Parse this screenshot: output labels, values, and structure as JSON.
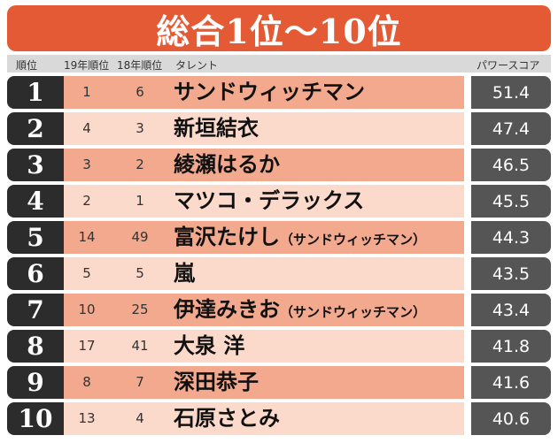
{
  "title": "総合1位～10位",
  "header": {
    "rank": "順位",
    "y19": "19年順位",
    "y18": "18年順位",
    "talent": "タレント",
    "score": "パワースコア"
  },
  "rows": [
    {
      "rank": "1",
      "y19": "1",
      "y18": "6",
      "talent": "サンドウィッチマン",
      "sub": "",
      "score": "51.4"
    },
    {
      "rank": "2",
      "y19": "4",
      "y18": "3",
      "talent": "新垣結衣",
      "sub": "",
      "score": "47.4"
    },
    {
      "rank": "3",
      "y19": "3",
      "y18": "2",
      "talent": "綾瀬はるか",
      "sub": "",
      "score": "46.5"
    },
    {
      "rank": "4",
      "y19": "2",
      "y18": "1",
      "talent": "マツコ・デラックス",
      "sub": "",
      "score": "45.5"
    },
    {
      "rank": "5",
      "y19": "14",
      "y18": "49",
      "talent": "富沢たけし",
      "sub": "（サンドウィッチマン）",
      "score": "44.3"
    },
    {
      "rank": "6",
      "y19": "5",
      "y18": "5",
      "talent": "嵐",
      "sub": "",
      "score": "43.5"
    },
    {
      "rank": "7",
      "y19": "10",
      "y18": "25",
      "talent": "伊達みきお",
      "sub": "（サンドウィッチマン）",
      "score": "43.4"
    },
    {
      "rank": "8",
      "y19": "17",
      "y18": "41",
      "talent": "大泉 洋",
      "sub": "",
      "score": "41.8"
    },
    {
      "rank": "9",
      "y19": "8",
      "y18": "7",
      "talent": "深田恭子",
      "sub": "",
      "score": "41.6"
    },
    {
      "rank": "10",
      "y19": "13",
      "y18": "4",
      "talent": "石原さとみ",
      "sub": "",
      "score": "40.6"
    }
  ]
}
